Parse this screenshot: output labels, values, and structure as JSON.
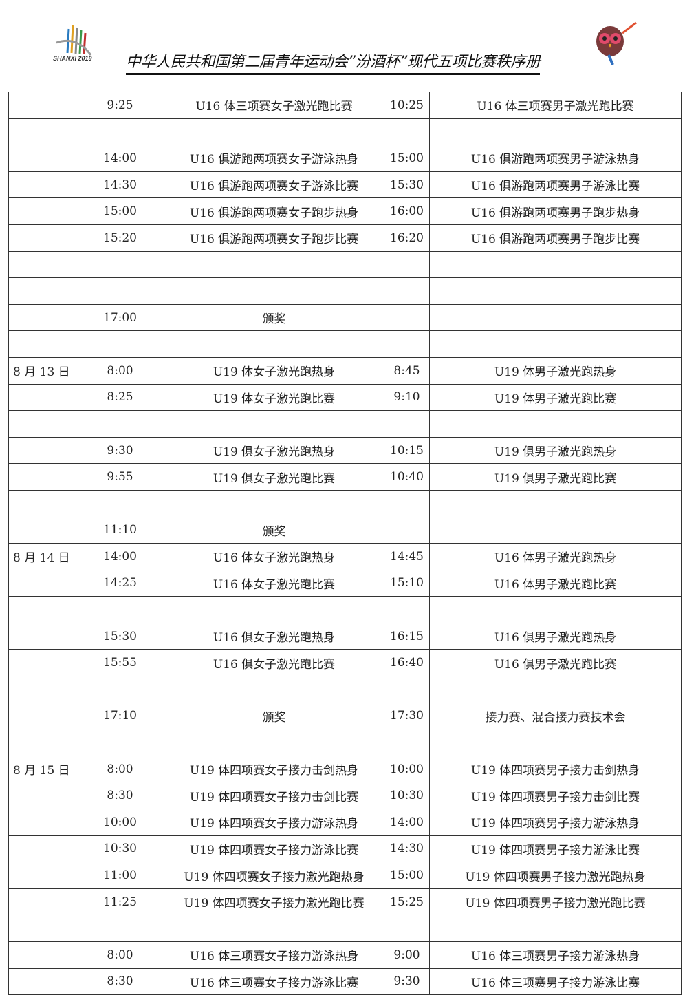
{
  "header": {
    "title": "中华人民共和国第二届青年运动会”汾酒杯”现代五项比赛秩序册",
    "logo_text": "SHANXI 2019"
  },
  "rows": [
    [
      "",
      "9:25",
      "U16 体三项赛女子激光跑比赛",
      "10:25",
      "U16 体三项赛男子激光跑比赛"
    ],
    [
      "",
      "",
      "",
      "",
      ""
    ],
    [
      "",
      "14:00",
      "U16 俱游跑两项赛女子游泳热身",
      "15:00",
      "U16 俱游跑两项赛男子游泳热身"
    ],
    [
      "",
      "14:30",
      "U16 俱游跑两项赛女子游泳比赛",
      "15:30",
      "U16 俱游跑两项赛男子游泳比赛"
    ],
    [
      "",
      "15:00",
      "U16 俱游跑两项赛女子跑步热身",
      "16:00",
      "U16 俱游跑两项赛男子跑步热身"
    ],
    [
      "",
      "15:20",
      "U16 俱游跑两项赛女子跑步比赛",
      "16:20",
      "U16 俱游跑两项赛男子跑步比赛"
    ],
    [
      "",
      "",
      "",
      "",
      ""
    ],
    [
      "",
      "",
      "",
      "",
      ""
    ],
    [
      "",
      "17:00",
      "颁奖",
      "",
      ""
    ],
    [
      "",
      "",
      "",
      "",
      ""
    ],
    [
      "8 月 13 日",
      "8:00",
      "U19 体女子激光跑热身",
      "8:45",
      "U19 体男子激光跑热身"
    ],
    [
      "",
      "8:25",
      "U19 体女子激光跑比赛",
      "9:10",
      "U19 体男子激光跑比赛"
    ],
    [
      "",
      "",
      "",
      "",
      ""
    ],
    [
      "",
      "9:30",
      "U19 俱女子激光跑热身",
      "10:15",
      "U19 俱男子激光跑热身"
    ],
    [
      "",
      "9:55",
      "U19 俱女子激光跑比赛",
      "10:40",
      "U19 俱男子激光跑比赛"
    ],
    [
      "",
      "",
      "",
      "",
      ""
    ],
    [
      "",
      "11:10",
      "颁奖",
      "",
      ""
    ],
    [
      "8 月 14 日",
      "14:00",
      "U16 体女子激光跑热身",
      "14:45",
      "U16 体男子激光跑热身"
    ],
    [
      "",
      "14:25",
      "U16 体女子激光跑比赛",
      "15:10",
      "U16 体男子激光跑比赛"
    ],
    [
      "",
      "",
      "",
      "",
      ""
    ],
    [
      "",
      "15:30",
      "U16 俱女子激光跑热身",
      "16:15",
      "U16 俱男子激光跑热身"
    ],
    [
      "",
      "15:55",
      "U16 俱女子激光跑比赛",
      "16:40",
      "U16 俱男子激光跑比赛"
    ],
    [
      "",
      "",
      "",
      "",
      ""
    ],
    [
      "",
      "17:10",
      "颁奖",
      "17:30",
      "接力赛、混合接力赛技术会"
    ],
    [
      "",
      "",
      "",
      "",
      ""
    ],
    [
      "8 月 15 日",
      "8:00",
      "U19 体四项赛女子接力击剑热身",
      "10:00",
      "U19 体四项赛男子接力击剑热身"
    ],
    [
      "",
      "8:30",
      "U19 体四项赛女子接力击剑比赛",
      "10:30",
      "U19 体四项赛男子接力击剑比赛"
    ],
    [
      "",
      "10:00",
      "U19 体四项赛女子接力游泳热身",
      "14:00",
      "U19 体四项赛男子接力游泳热身"
    ],
    [
      "",
      "10:30",
      "U19 体四项赛女子接力游泳比赛",
      "14:30",
      "U19 体四项赛男子接力游泳比赛"
    ],
    [
      "",
      "11:00",
      "U19 体四项赛女子接力激光跑热身",
      "15:00",
      "U19 体四项赛男子接力激光跑热身"
    ],
    [
      "",
      "11:25",
      "U19 体四项赛女子接力激光跑比赛",
      "15:25",
      "U19 体四项赛男子接力激光跑比赛"
    ],
    [
      "",
      "",
      "",
      "",
      ""
    ],
    [
      "",
      "8:00",
      "U16 体三项赛女子接力游泳热身",
      "9:00",
      "U16 体三项赛男子接力游泳热身"
    ],
    [
      "",
      "8:30",
      "U16 体三项赛女子接力游泳比赛",
      "9:30",
      "U16 体三项赛男子接力游泳比赛"
    ]
  ]
}
